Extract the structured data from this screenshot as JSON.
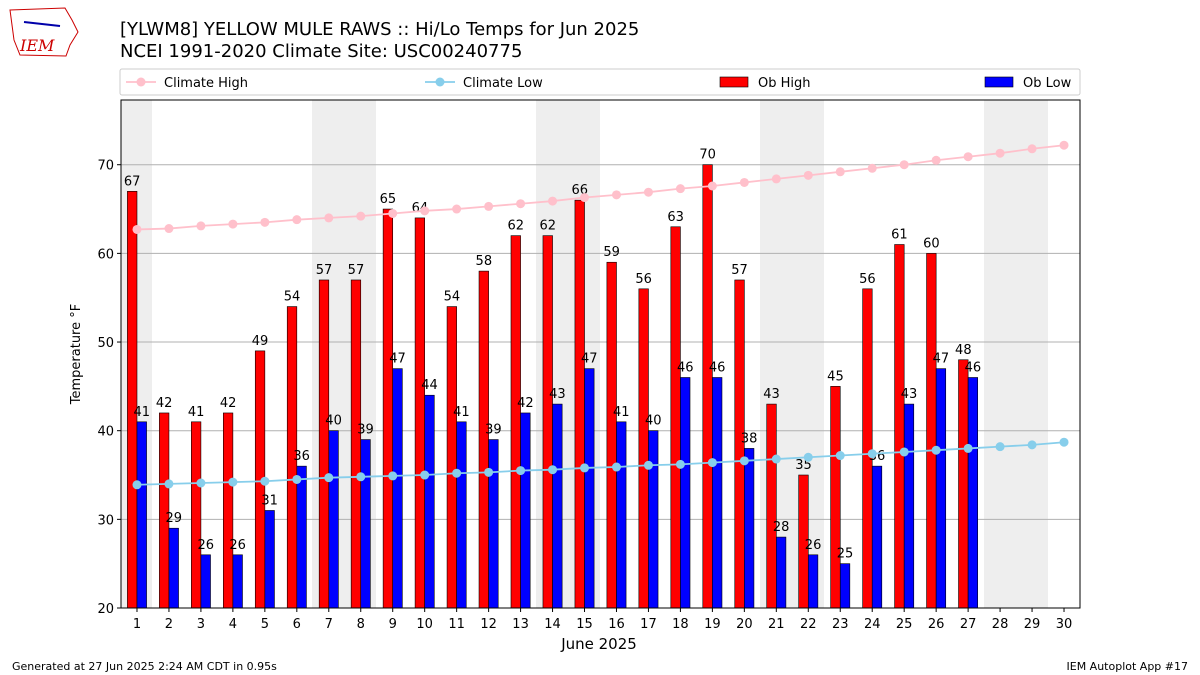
{
  "logo_text": "IEM",
  "chart_data": {
    "type": "bar",
    "title": "[YLWM8] YELLOW MULE RAWS :: Hi/Lo Temps for Jun 2025",
    "subtitle": "NCEI 1991-2020 Climate Site: USC00240775",
    "x_label": "June 2025",
    "y_label": "Temperature °F",
    "x": [
      1,
      2,
      3,
      4,
      5,
      6,
      7,
      8,
      9,
      10,
      11,
      12,
      13,
      14,
      15,
      16,
      17,
      18,
      19,
      20,
      21,
      22,
      23,
      24,
      25,
      26,
      27,
      28,
      29,
      30
    ],
    "xlim": [
      0.5,
      30.5
    ],
    "xticks": [
      1,
      2,
      3,
      4,
      5,
      6,
      7,
      8,
      9,
      10,
      11,
      12,
      13,
      14,
      15,
      16,
      17,
      18,
      19,
      20,
      21,
      22,
      23,
      24,
      25,
      26,
      27,
      28,
      29,
      30
    ],
    "ylim": [
      20,
      77.3
    ],
    "yticks": [
      20,
      30,
      40,
      50,
      60,
      70
    ],
    "grid": true,
    "series": [
      {
        "name": "Climate High",
        "type": "line",
        "color": "#ffc0cb",
        "values": [
          62.7,
          62.8,
          63.1,
          63.3,
          63.5,
          63.8,
          64.0,
          64.2,
          64.5,
          64.8,
          65.0,
          65.3,
          65.6,
          65.9,
          66.3,
          66.6,
          66.9,
          67.3,
          67.6,
          68.0,
          68.4,
          68.8,
          69.2,
          69.6,
          70.0,
          70.5,
          70.9,
          71.3,
          71.8,
          72.2
        ]
      },
      {
        "name": "Climate Low",
        "type": "line",
        "color": "#87ceeb",
        "values": [
          33.9,
          34.0,
          34.1,
          34.2,
          34.3,
          34.5,
          34.7,
          34.8,
          34.9,
          35.0,
          35.2,
          35.3,
          35.5,
          35.6,
          35.8,
          35.9,
          36.1,
          36.2,
          36.4,
          36.6,
          36.8,
          37.0,
          37.2,
          37.4,
          37.6,
          37.8,
          38.0,
          38.2,
          38.4,
          38.7
        ]
      },
      {
        "name": "Ob High",
        "type": "bar",
        "color": "#ff0000",
        "values": [
          67,
          42,
          41,
          42,
          49,
          54,
          57,
          57,
          65,
          64,
          54,
          58,
          62,
          62,
          66,
          59,
          56,
          63,
          70,
          57,
          43,
          35,
          45,
          56,
          61,
          60,
          48,
          null,
          null,
          null
        ]
      },
      {
        "name": "Ob Low",
        "type": "bar",
        "color": "#0000ff",
        "values": [
          41,
          29,
          26,
          26,
          31,
          36,
          40,
          39,
          47,
          44,
          41,
          39,
          42,
          43,
          47,
          41,
          40,
          46,
          46,
          38,
          28,
          26,
          25,
          36,
          43,
          47,
          46,
          null,
          null,
          null
        ]
      }
    ]
  },
  "footer": {
    "left": "Generated at 27 Jun 2025 2:24 AM CDT in 0.95s",
    "right": "IEM Autoplot App #17"
  }
}
